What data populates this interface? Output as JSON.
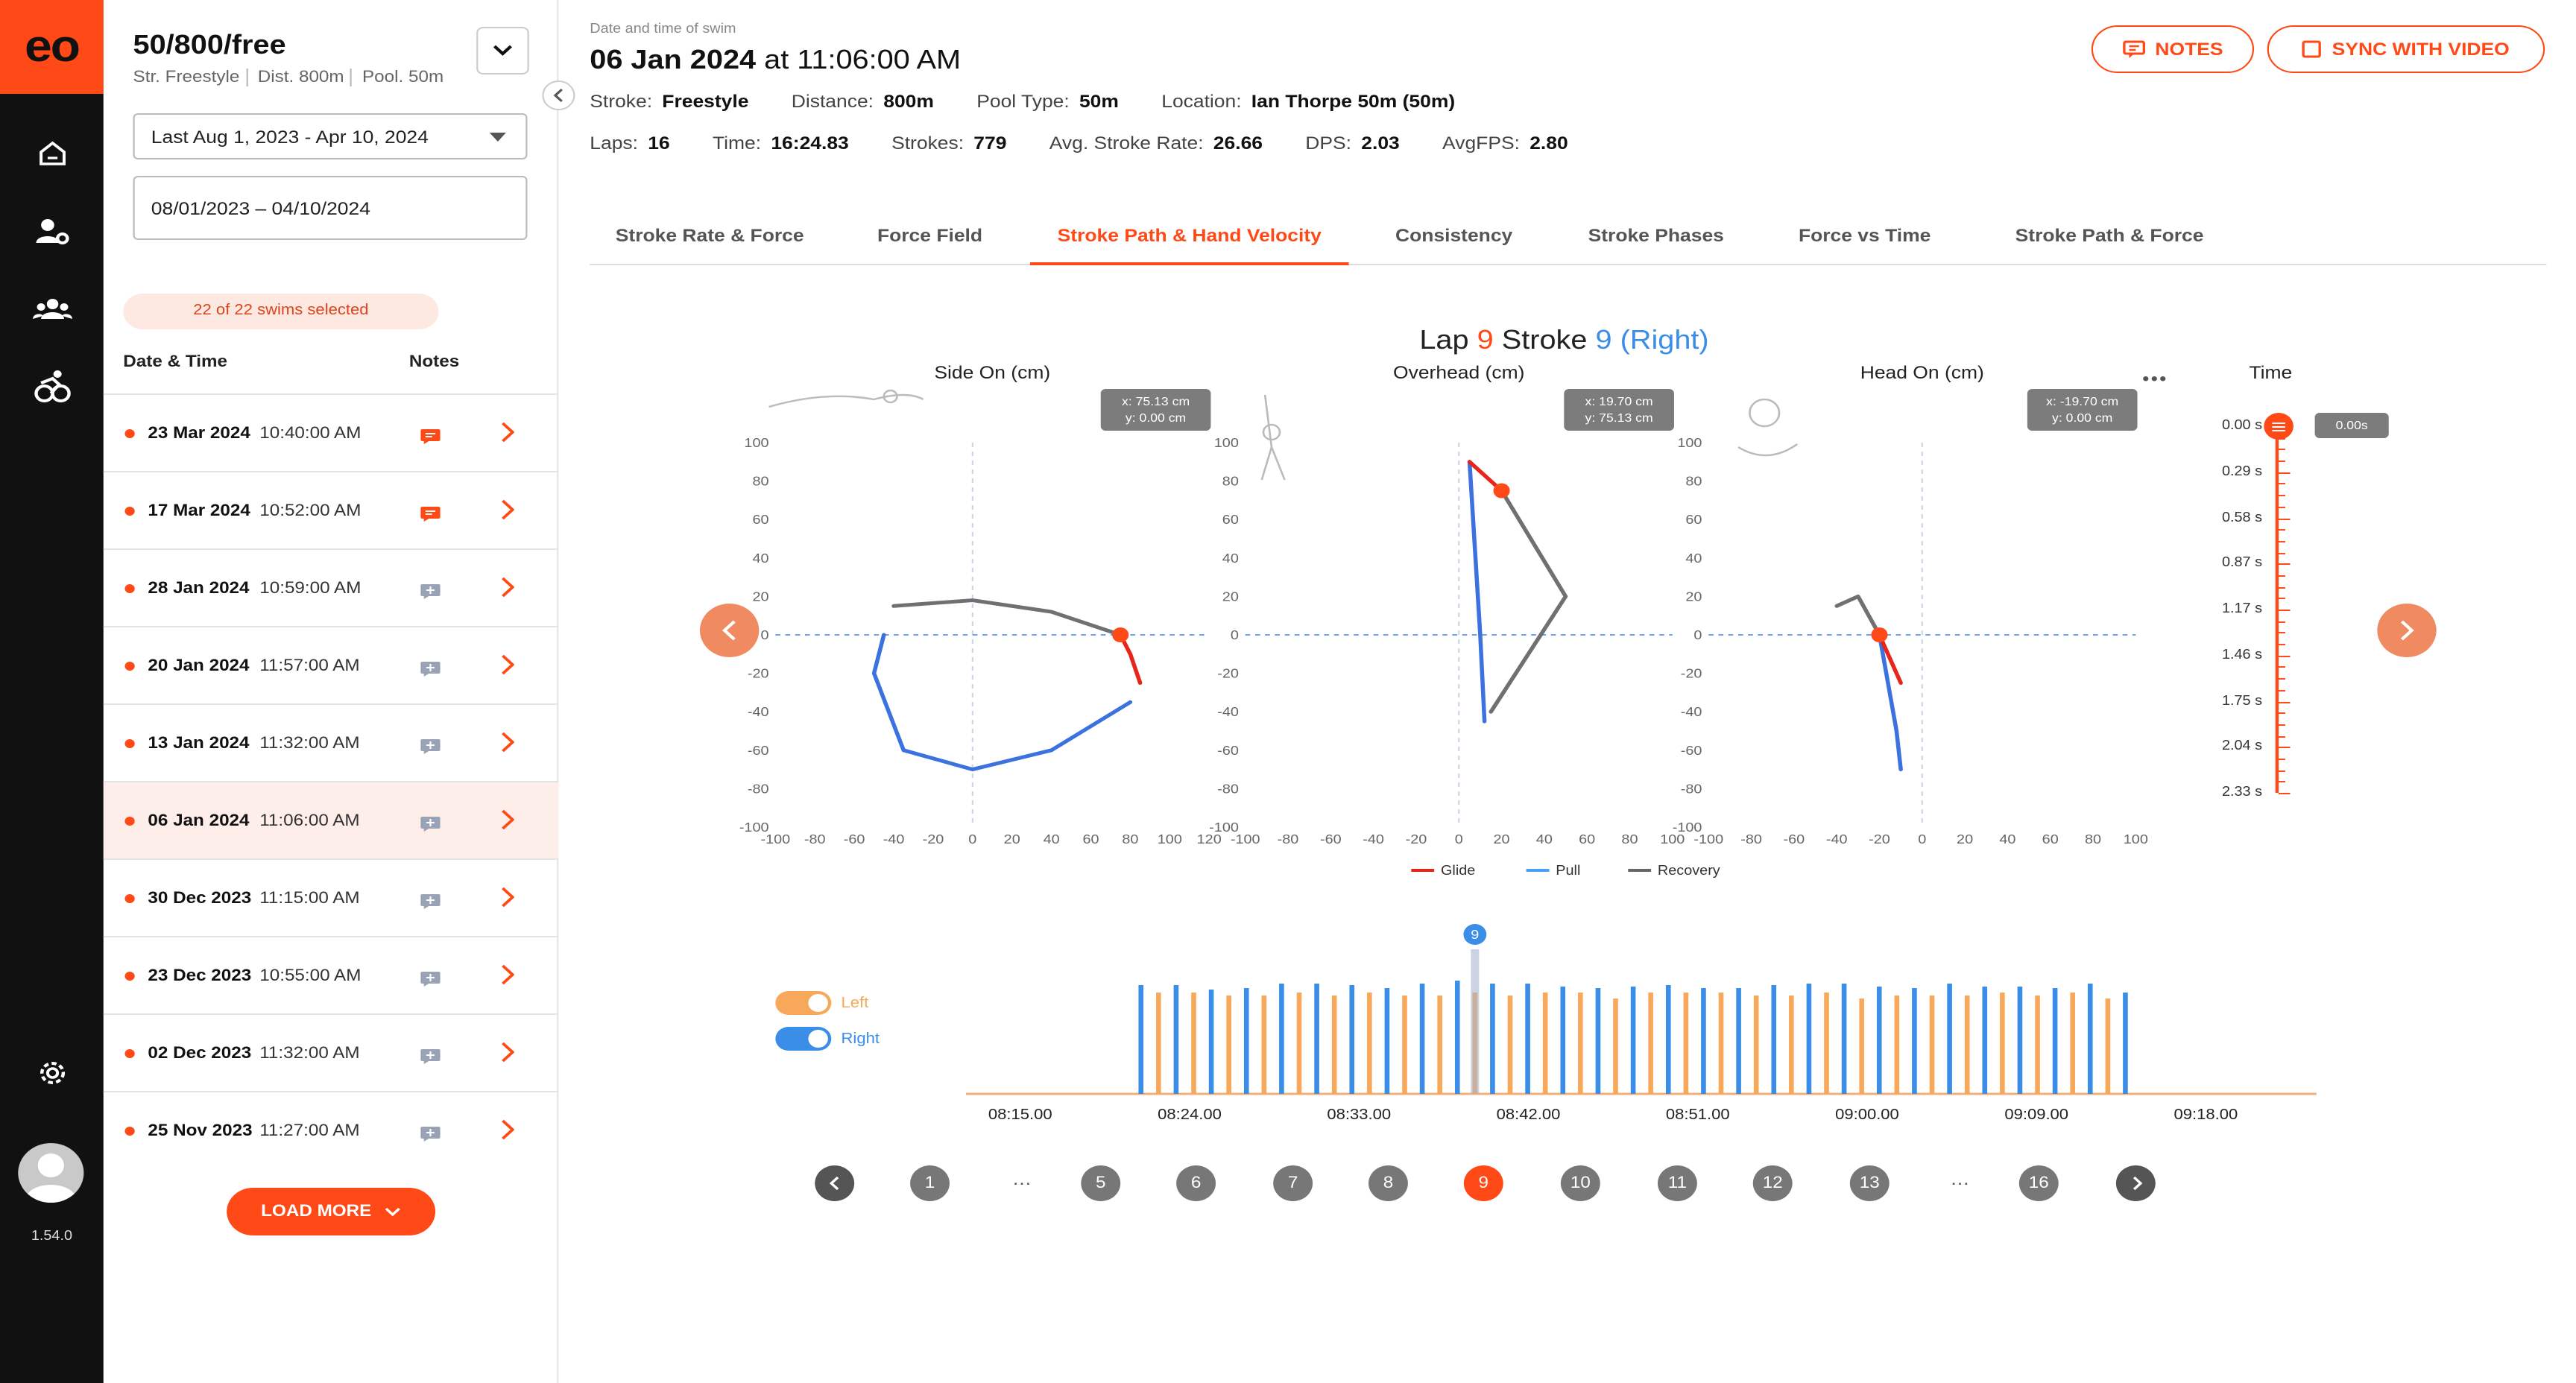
{
  "app": {
    "logo": "eo",
    "version": "1.54.0"
  },
  "rail": {
    "icons": [
      "home-icon",
      "user-settings-icon",
      "team-icon",
      "triathlon-icon",
      "settings-icon"
    ]
  },
  "sidebar": {
    "title": "50/800/free",
    "sub": [
      "Str. Freestyle",
      "Dist. 800m",
      "Pool. 50m"
    ],
    "range_select": "Last  Aug 1, 2023 - Apr 10, 2024",
    "date_input": "08/01/2023 – 04/10/2024",
    "selected_count": "22 of 22 swims selected",
    "col_date": "Date & Time",
    "col_notes": "Notes",
    "swims": [
      {
        "date": "23 Mar 2024",
        "time": "10:40:00 AM",
        "has_note": true
      },
      {
        "date": "17 Mar 2024",
        "time": "10:52:00 AM",
        "has_note": true
      },
      {
        "date": "28 Jan 2024",
        "time": "10:59:00 AM",
        "has_note": false
      },
      {
        "date": "20 Jan 2024",
        "time": "11:57:00 AM",
        "has_note": false
      },
      {
        "date": "13 Jan 2024",
        "time": "11:32:00 AM",
        "has_note": false
      },
      {
        "date": "06 Jan 2024",
        "time": "11:06:00 AM",
        "has_note": false,
        "selected": true
      },
      {
        "date": "30 Dec 2023",
        "time": "11:15:00 AM",
        "has_note": false
      },
      {
        "date": "23 Dec 2023",
        "time": "10:55:00 AM",
        "has_note": false
      },
      {
        "date": "02 Dec 2023",
        "time": "11:32:00 AM",
        "has_note": false
      },
      {
        "date": "25 Nov 2023",
        "time": "11:27:00 AM",
        "has_note": false
      }
    ],
    "load_more": "LOAD MORE"
  },
  "header": {
    "label": "Date and time of swim",
    "date": "06 Jan 2024",
    "time": "at 11:06:00 AM",
    "notes_btn": "NOTES",
    "sync_btn": "SYNC WITH VIDEO",
    "row1": [
      {
        "k": "Stroke:",
        "v": "Freestyle"
      },
      {
        "k": "Distance:",
        "v": "800m"
      },
      {
        "k": "Pool Type:",
        "v": "50m"
      },
      {
        "k": "Location:",
        "v": "Ian Thorpe 50m (50m)"
      }
    ],
    "row2": [
      {
        "k": "Laps:",
        "v": "16"
      },
      {
        "k": "Time:",
        "v": "16:24.83"
      },
      {
        "k": "Strokes:",
        "v": "779"
      },
      {
        "k": "Avg. Stroke Rate:",
        "v": "26.66"
      },
      {
        "k": "DPS:",
        "v": "2.03"
      },
      {
        "k": "AvgFPS:",
        "v": "2.80"
      }
    ]
  },
  "tabs": [
    "Stroke Rate & Force",
    "Force Field",
    "Stroke Path & Hand Velocity",
    "Consistency",
    "Stroke Phases",
    "Force vs Time",
    "Stroke Path & Force"
  ],
  "active_tab": 2,
  "chart": {
    "lap_label": "Lap",
    "lap": "9",
    "stroke_label": "Stroke",
    "stroke": "9 (Right)",
    "accent": "#ff4a17",
    "blue": "#3b8ee8",
    "panels": [
      {
        "title": "Side On (cm)",
        "tip_x": "x: 75.13 cm",
        "tip_y": "y: 0.00 cm"
      },
      {
        "title": "Overhead (cm)",
        "tip_x": "x: 19.70 cm",
        "tip_y": "y: 75.13 cm"
      },
      {
        "title": "Head On (cm)",
        "tip_x": "x: -19.70  cm",
        "tip_y": "y: 0.00 cm"
      }
    ],
    "time_title": "Time",
    "time_ticks": [
      "0.00 s",
      "0.29 s",
      "0.58 s",
      "0.87 s",
      "1.17 s",
      "1.46 s",
      "1.75 s",
      "2.04 s",
      "2.33 s"
    ],
    "time_current": "0.00s",
    "legend": [
      {
        "name": "Glide",
        "color": "#e8251b"
      },
      {
        "name": "Pull",
        "color": "#4a9ff5"
      },
      {
        "name": "Recovery",
        "color": "#666666"
      }
    ],
    "toggles": [
      {
        "label": "Left",
        "color": "#f8a85a"
      },
      {
        "label": "Right",
        "color": "#3b8ee8"
      }
    ],
    "timeline_ticks": [
      "08:15.00",
      "08:24.00",
      "08:33.00",
      "08:42.00",
      "08:51.00",
      "09:00.00",
      "09:09.00",
      "09:18.00"
    ],
    "timeline_marker": "9",
    "pages": [
      "1",
      "…",
      "5",
      "6",
      "7",
      "8",
      "9",
      "10",
      "11",
      "12",
      "13",
      "…",
      "16"
    ],
    "active_page": "9"
  },
  "chart_data": [
    {
      "type": "line",
      "title": "Side On (cm)",
      "xlim": [
        -100,
        120
      ],
      "ylim": [
        -100,
        100
      ],
      "series": [
        {
          "name": "Glide",
          "values": [
            [
              75,
              0
            ],
            [
              80,
              -10
            ],
            [
              85,
              -25
            ]
          ]
        },
        {
          "name": "Pull",
          "values": [
            [
              -45,
              0
            ],
            [
              -50,
              -20
            ],
            [
              -35,
              -60
            ],
            [
              0,
              -70
            ],
            [
              40,
              -60
            ],
            [
              80,
              -35
            ]
          ]
        },
        {
          "name": "Recovery",
          "values": [
            [
              -40,
              15
            ],
            [
              0,
              18
            ],
            [
              40,
              12
            ],
            [
              75,
              0
            ]
          ]
        }
      ]
    },
    {
      "type": "line",
      "title": "Overhead (cm)",
      "xlim": [
        -100,
        100
      ],
      "ylim": [
        -100,
        100
      ],
      "series": [
        {
          "name": "Glide",
          "values": [
            [
              5,
              90
            ],
            [
              20,
              75
            ]
          ]
        },
        {
          "name": "Pull",
          "values": [
            [
              5,
              90
            ],
            [
              10,
              0
            ],
            [
              12,
              -45
            ]
          ]
        },
        {
          "name": "Recovery",
          "values": [
            [
              20,
              75
            ],
            [
              50,
              20
            ],
            [
              15,
              -40
            ]
          ]
        }
      ]
    },
    {
      "type": "line",
      "title": "Head On (cm)",
      "xlim": [
        -100,
        100
      ],
      "ylim": [
        -100,
        100
      ],
      "series": [
        {
          "name": "Glide",
          "values": [
            [
              -20,
              0
            ],
            [
              -10,
              -25
            ]
          ]
        },
        {
          "name": "Pull",
          "values": [
            [
              -20,
              0
            ],
            [
              -12,
              -50
            ],
            [
              -10,
              -70
            ]
          ]
        },
        {
          "name": "Recovery",
          "values": [
            [
              -40,
              15
            ],
            [
              -30,
              20
            ],
            [
              -20,
              0
            ]
          ]
        }
      ]
    }
  ]
}
